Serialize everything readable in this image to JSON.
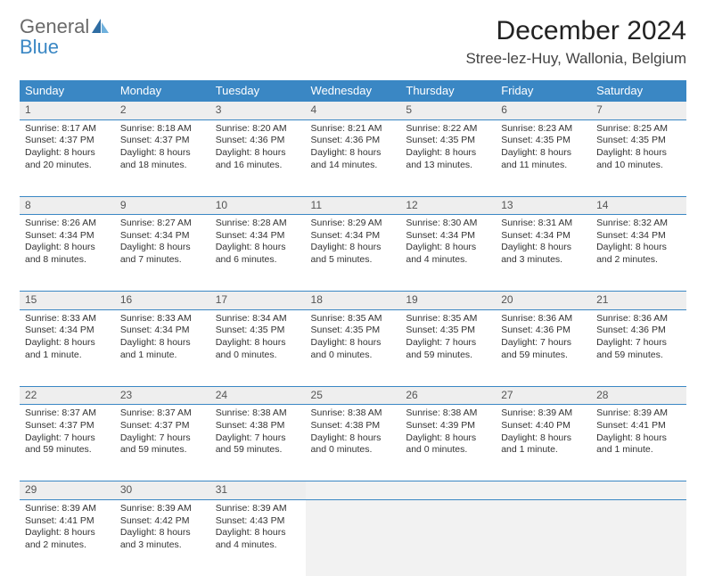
{
  "logo": {
    "general": "General",
    "blue": "Blue"
  },
  "title": "December 2024",
  "location": "Stree-lez-Huy, Wallonia, Belgium",
  "colors": {
    "header_bg": "#3a87c4",
    "header_text": "#ffffff",
    "daynum_bg": "#eeeeee",
    "border": "#3a87c4",
    "logo_general": "#6a6a6a",
    "logo_blue": "#3a87c4"
  },
  "weekdays": [
    "Sunday",
    "Monday",
    "Tuesday",
    "Wednesday",
    "Thursday",
    "Friday",
    "Saturday"
  ],
  "weeks": [
    [
      {
        "n": "1",
        "sr": "Sunrise: 8:17 AM",
        "ss": "Sunset: 4:37 PM",
        "d1": "Daylight: 8 hours",
        "d2": "and 20 minutes."
      },
      {
        "n": "2",
        "sr": "Sunrise: 8:18 AM",
        "ss": "Sunset: 4:37 PM",
        "d1": "Daylight: 8 hours",
        "d2": "and 18 minutes."
      },
      {
        "n": "3",
        "sr": "Sunrise: 8:20 AM",
        "ss": "Sunset: 4:36 PM",
        "d1": "Daylight: 8 hours",
        "d2": "and 16 minutes."
      },
      {
        "n": "4",
        "sr": "Sunrise: 8:21 AM",
        "ss": "Sunset: 4:36 PM",
        "d1": "Daylight: 8 hours",
        "d2": "and 14 minutes."
      },
      {
        "n": "5",
        "sr": "Sunrise: 8:22 AM",
        "ss": "Sunset: 4:35 PM",
        "d1": "Daylight: 8 hours",
        "d2": "and 13 minutes."
      },
      {
        "n": "6",
        "sr": "Sunrise: 8:23 AM",
        "ss": "Sunset: 4:35 PM",
        "d1": "Daylight: 8 hours",
        "d2": "and 11 minutes."
      },
      {
        "n": "7",
        "sr": "Sunrise: 8:25 AM",
        "ss": "Sunset: 4:35 PM",
        "d1": "Daylight: 8 hours",
        "d2": "and 10 minutes."
      }
    ],
    [
      {
        "n": "8",
        "sr": "Sunrise: 8:26 AM",
        "ss": "Sunset: 4:34 PM",
        "d1": "Daylight: 8 hours",
        "d2": "and 8 minutes."
      },
      {
        "n": "9",
        "sr": "Sunrise: 8:27 AM",
        "ss": "Sunset: 4:34 PM",
        "d1": "Daylight: 8 hours",
        "d2": "and 7 minutes."
      },
      {
        "n": "10",
        "sr": "Sunrise: 8:28 AM",
        "ss": "Sunset: 4:34 PM",
        "d1": "Daylight: 8 hours",
        "d2": "and 6 minutes."
      },
      {
        "n": "11",
        "sr": "Sunrise: 8:29 AM",
        "ss": "Sunset: 4:34 PM",
        "d1": "Daylight: 8 hours",
        "d2": "and 5 minutes."
      },
      {
        "n": "12",
        "sr": "Sunrise: 8:30 AM",
        "ss": "Sunset: 4:34 PM",
        "d1": "Daylight: 8 hours",
        "d2": "and 4 minutes."
      },
      {
        "n": "13",
        "sr": "Sunrise: 8:31 AM",
        "ss": "Sunset: 4:34 PM",
        "d1": "Daylight: 8 hours",
        "d2": "and 3 minutes."
      },
      {
        "n": "14",
        "sr": "Sunrise: 8:32 AM",
        "ss": "Sunset: 4:34 PM",
        "d1": "Daylight: 8 hours",
        "d2": "and 2 minutes."
      }
    ],
    [
      {
        "n": "15",
        "sr": "Sunrise: 8:33 AM",
        "ss": "Sunset: 4:34 PM",
        "d1": "Daylight: 8 hours",
        "d2": "and 1 minute."
      },
      {
        "n": "16",
        "sr": "Sunrise: 8:33 AM",
        "ss": "Sunset: 4:34 PM",
        "d1": "Daylight: 8 hours",
        "d2": "and 1 minute."
      },
      {
        "n": "17",
        "sr": "Sunrise: 8:34 AM",
        "ss": "Sunset: 4:35 PM",
        "d1": "Daylight: 8 hours",
        "d2": "and 0 minutes."
      },
      {
        "n": "18",
        "sr": "Sunrise: 8:35 AM",
        "ss": "Sunset: 4:35 PM",
        "d1": "Daylight: 8 hours",
        "d2": "and 0 minutes."
      },
      {
        "n": "19",
        "sr": "Sunrise: 8:35 AM",
        "ss": "Sunset: 4:35 PM",
        "d1": "Daylight: 7 hours",
        "d2": "and 59 minutes."
      },
      {
        "n": "20",
        "sr": "Sunrise: 8:36 AM",
        "ss": "Sunset: 4:36 PM",
        "d1": "Daylight: 7 hours",
        "d2": "and 59 minutes."
      },
      {
        "n": "21",
        "sr": "Sunrise: 8:36 AM",
        "ss": "Sunset: 4:36 PM",
        "d1": "Daylight: 7 hours",
        "d2": "and 59 minutes."
      }
    ],
    [
      {
        "n": "22",
        "sr": "Sunrise: 8:37 AM",
        "ss": "Sunset: 4:37 PM",
        "d1": "Daylight: 7 hours",
        "d2": "and 59 minutes."
      },
      {
        "n": "23",
        "sr": "Sunrise: 8:37 AM",
        "ss": "Sunset: 4:37 PM",
        "d1": "Daylight: 7 hours",
        "d2": "and 59 minutes."
      },
      {
        "n": "24",
        "sr": "Sunrise: 8:38 AM",
        "ss": "Sunset: 4:38 PM",
        "d1": "Daylight: 7 hours",
        "d2": "and 59 minutes."
      },
      {
        "n": "25",
        "sr": "Sunrise: 8:38 AM",
        "ss": "Sunset: 4:38 PM",
        "d1": "Daylight: 8 hours",
        "d2": "and 0 minutes."
      },
      {
        "n": "26",
        "sr": "Sunrise: 8:38 AM",
        "ss": "Sunset: 4:39 PM",
        "d1": "Daylight: 8 hours",
        "d2": "and 0 minutes."
      },
      {
        "n": "27",
        "sr": "Sunrise: 8:39 AM",
        "ss": "Sunset: 4:40 PM",
        "d1": "Daylight: 8 hours",
        "d2": "and 1 minute."
      },
      {
        "n": "28",
        "sr": "Sunrise: 8:39 AM",
        "ss": "Sunset: 4:41 PM",
        "d1": "Daylight: 8 hours",
        "d2": "and 1 minute."
      }
    ],
    [
      {
        "n": "29",
        "sr": "Sunrise: 8:39 AM",
        "ss": "Sunset: 4:41 PM",
        "d1": "Daylight: 8 hours",
        "d2": "and 2 minutes."
      },
      {
        "n": "30",
        "sr": "Sunrise: 8:39 AM",
        "ss": "Sunset: 4:42 PM",
        "d1": "Daylight: 8 hours",
        "d2": "and 3 minutes."
      },
      {
        "n": "31",
        "sr": "Sunrise: 8:39 AM",
        "ss": "Sunset: 4:43 PM",
        "d1": "Daylight: 8 hours",
        "d2": "and 4 minutes."
      },
      null,
      null,
      null,
      null
    ]
  ]
}
